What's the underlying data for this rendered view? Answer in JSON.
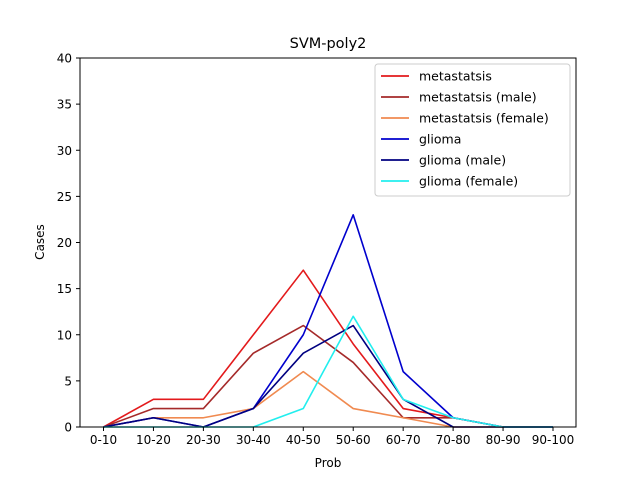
{
  "chart_data": {
    "type": "line",
    "title": "SVM-poly2",
    "xlabel": "Prob",
    "ylabel": "Cases",
    "categories": [
      "0-10",
      "10-20",
      "20-30",
      "30-40",
      "40-50",
      "50-60",
      "60-70",
      "70-80",
      "80-90",
      "90-100"
    ],
    "ylim": [
      0,
      40
    ],
    "yticks": [
      0,
      5,
      10,
      15,
      20,
      25,
      30,
      35,
      40
    ],
    "grid": false,
    "legend_position": "top-right",
    "series": [
      {
        "name": "metastatsis",
        "color": "#e31a1c",
        "values": [
          0,
          3,
          3,
          10,
          17,
          9,
          2,
          1,
          0,
          0
        ]
      },
      {
        "name": "metastatsis (male)",
        "color": "#a52a2a",
        "values": [
          0,
          2,
          2,
          8,
          11,
          7,
          1,
          1,
          0,
          0
        ]
      },
      {
        "name": "metastatsis (female)",
        "color": "#f08a50",
        "values": [
          0,
          1,
          1,
          2,
          6,
          2,
          1,
          0,
          0,
          0
        ]
      },
      {
        "name": "glioma",
        "color": "#0000cd",
        "values": [
          0,
          1,
          0,
          2,
          10,
          23,
          6,
          1,
          0,
          0
        ]
      },
      {
        "name": "glioma (male)",
        "color": "#000080",
        "values": [
          0,
          1,
          0,
          2,
          8,
          11,
          3,
          0,
          0,
          0
        ]
      },
      {
        "name": "glioma (female)",
        "color": "#22eeee",
        "values": [
          0,
          0,
          0,
          0,
          2,
          12,
          3,
          1,
          0,
          0
        ]
      }
    ]
  }
}
